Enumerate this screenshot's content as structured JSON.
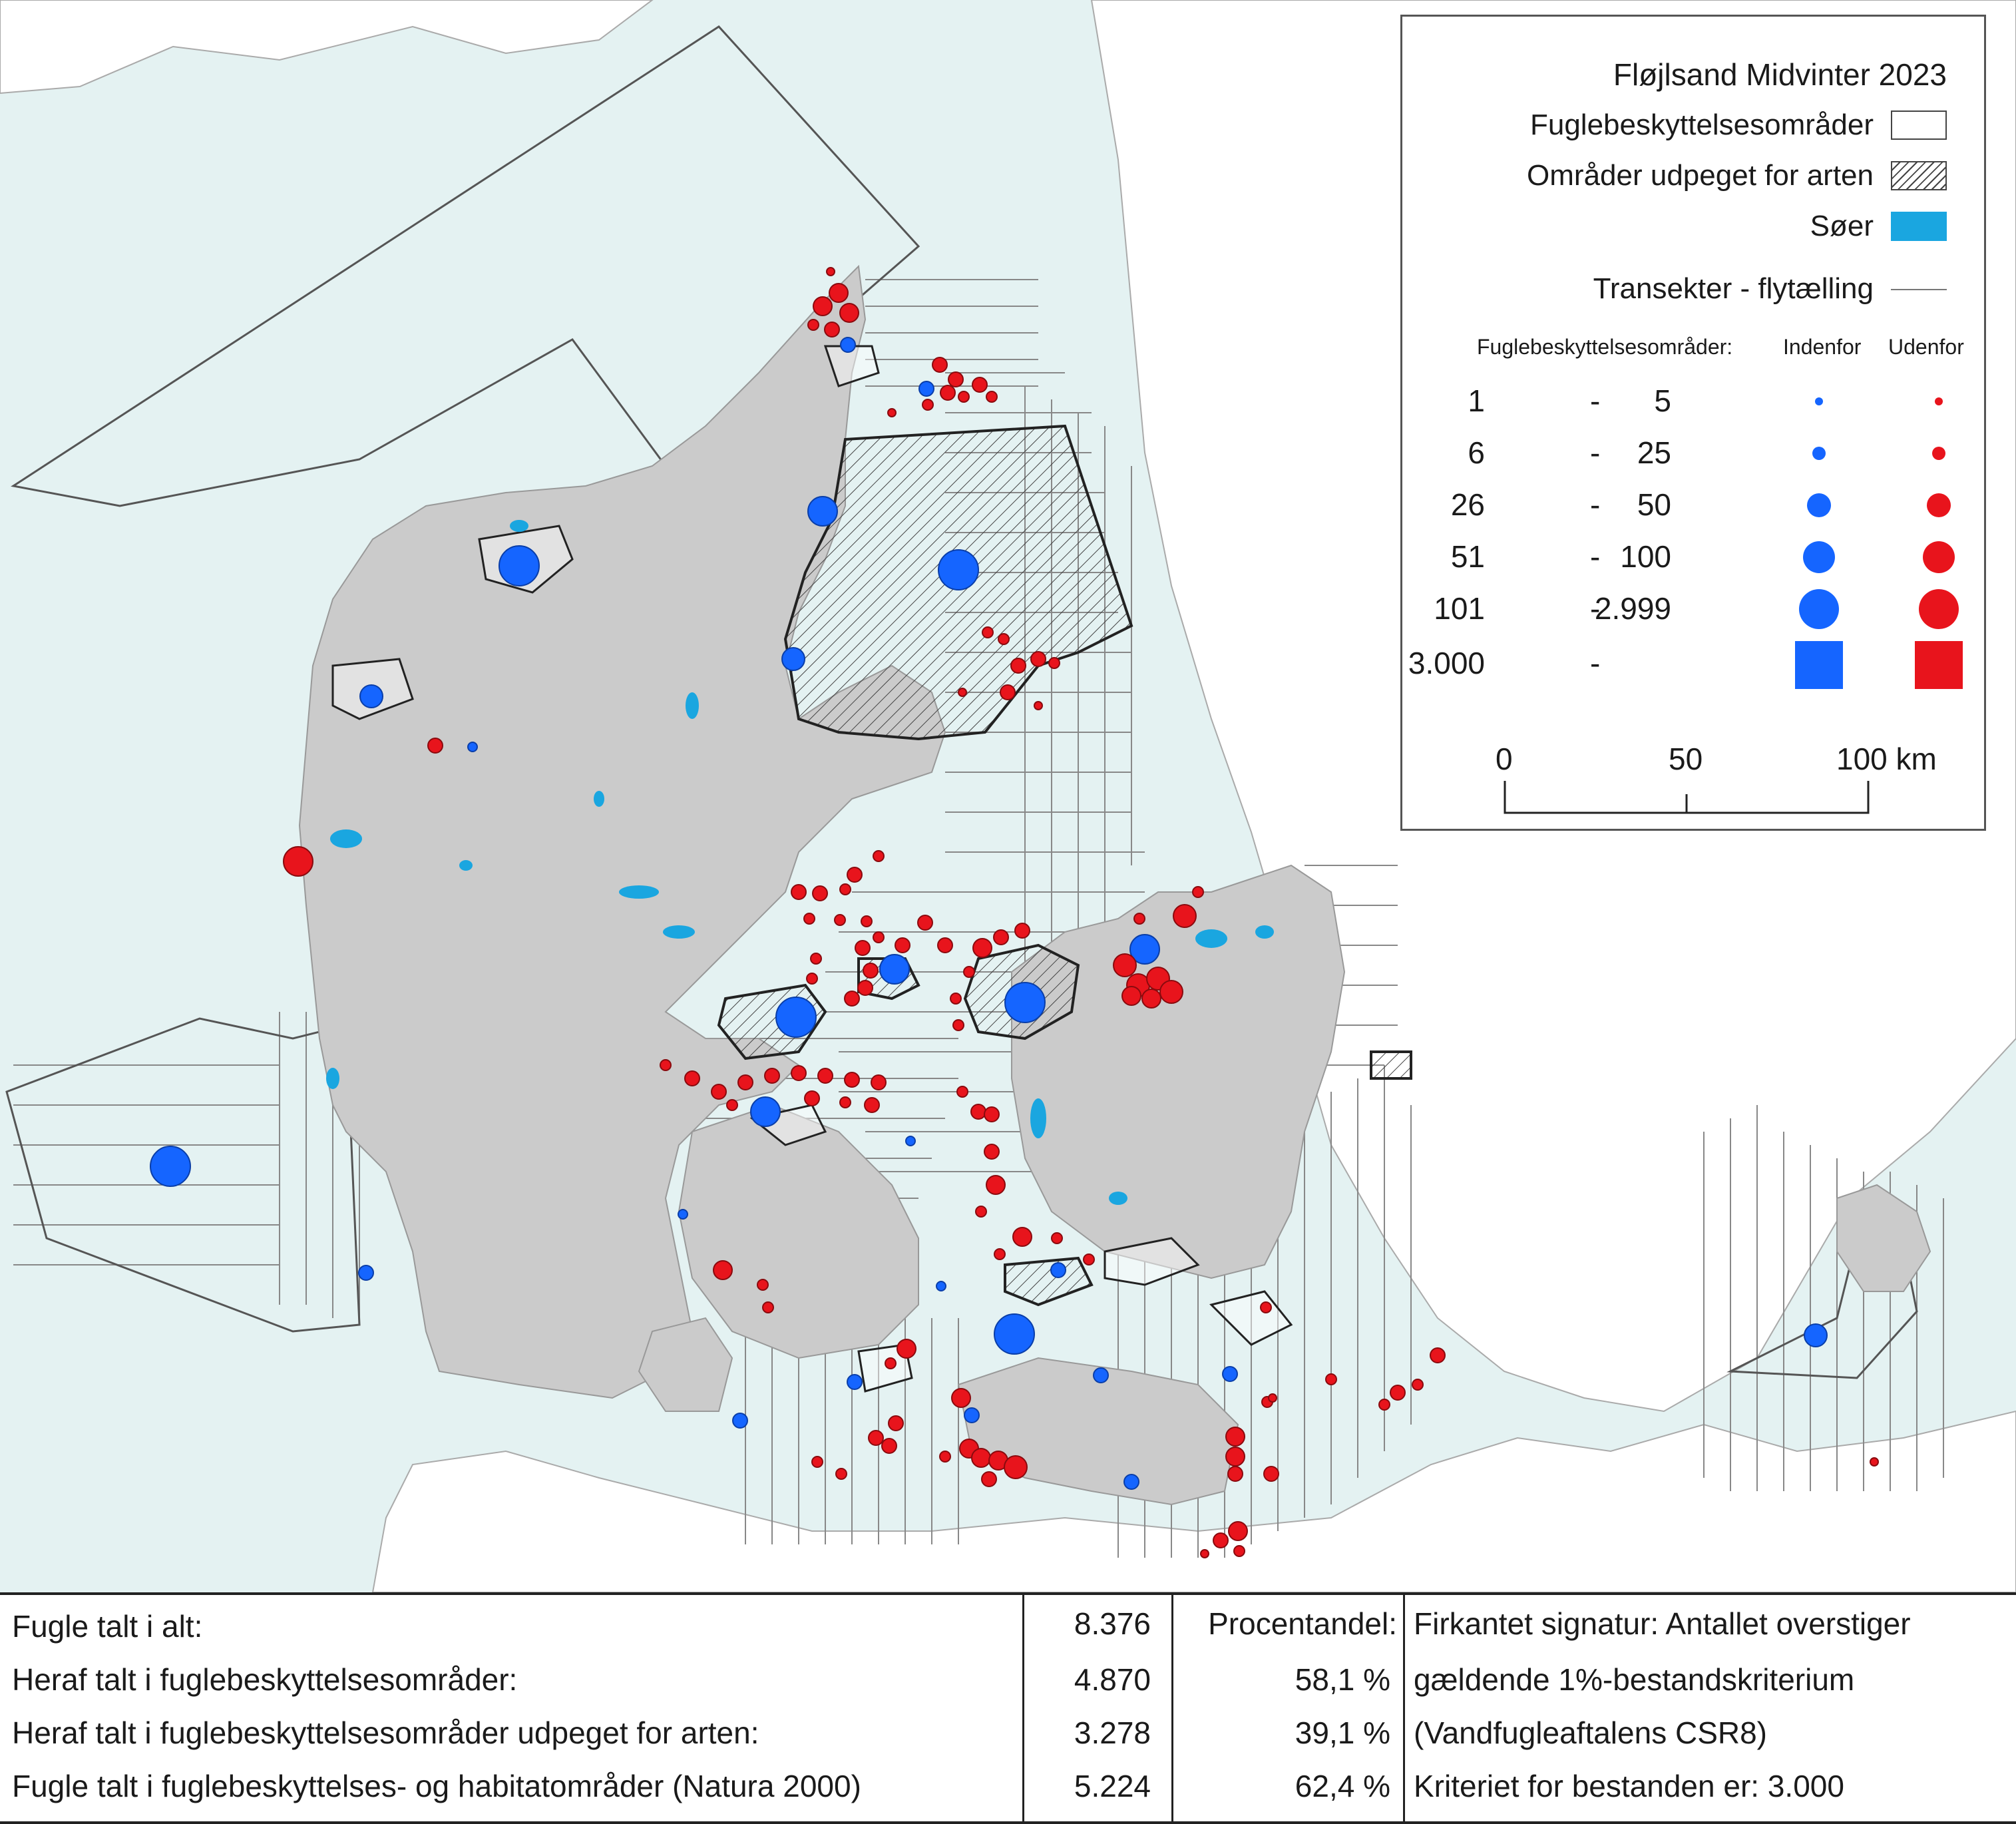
{
  "legend": {
    "title": "Fløjlsand Midvinter 2023",
    "items": [
      {
        "label": "Fuglebeskyttelsesområder",
        "swatch": "plain"
      },
      {
        "label": "Områder udpeget for arten",
        "swatch": "hatch"
      },
      {
        "label": "Søer",
        "swatch": "lake"
      },
      {
        "label": "Transekter - flytælling",
        "swatch": "line"
      }
    ],
    "size_header": {
      "label": "Fuglebeskyttelsesområder:",
      "inside": "Indenfor",
      "outside": "Udenfor"
    },
    "size_classes": [
      {
        "from": "1",
        "dash": "-",
        "to": "5"
      },
      {
        "from": "6",
        "dash": "-",
        "to": "25"
      },
      {
        "from": "26",
        "dash": "-",
        "to": "50"
      },
      {
        "from": "51",
        "dash": "-",
        "to": "100"
      },
      {
        "from": "101",
        "dash": "-",
        "to": "2.999"
      },
      {
        "from": "3.000",
        "dash": "-",
        "to": ""
      }
    ],
    "scale": {
      "t0": "0",
      "t1": "50",
      "t2": "100 km"
    }
  },
  "colors": {
    "sea": "#e4f2f2",
    "land": "#cbcbcb",
    "foreign_land": "#ffffff",
    "lake": "#1aa6e0",
    "inside": "#1565ff",
    "outside": "#e8141c",
    "outline": "#333333"
  },
  "summary_table": {
    "rows": [
      {
        "label": "Fugle talt i alt:",
        "value": "8.376",
        "pct": "Procentandel:",
        "note": "Firkantet signatur: Antallet overstiger"
      },
      {
        "label": "Heraf talt i fuglebeskyttelsesområder:",
        "value": "4.870",
        "pct": "58,1 %",
        "note": "gældende 1%-bestandskriterium"
      },
      {
        "label": "Heraf talt i fuglebeskyttelsesområder udpeget for arten:",
        "value": "3.278",
        "pct": "39,1 %",
        "note": "(Vandfugleaftalens CSR8)"
      },
      {
        "label": "Fugle talt i fuglebeskyttelses- og habitatområder (Natura 2000)",
        "value": "5.224",
        "pct": "62,4 %",
        "note": "Kriteriet for bestanden er: 3.000"
      }
    ]
  }
}
